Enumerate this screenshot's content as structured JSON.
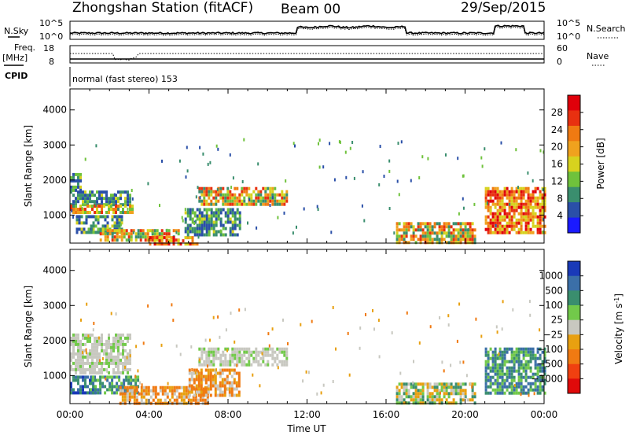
{
  "header": {
    "station": "Zhongshan Station (fitACF)",
    "beam": "Beam 00",
    "date": "29/Sep/2015"
  },
  "top_panels": {
    "nsky_label": "N.Sky",
    "nsky_ticks": [
      "10^5",
      "10^0"
    ],
    "nsearch_label": "N.Search",
    "nsearch_ticks": [
      "10^5",
      "10^0"
    ],
    "freq_label": "Freq.",
    "freq_unit": "[MHz]",
    "freq_ticks": [
      "18",
      "8"
    ],
    "nave_label": "Nave",
    "nave_ticks": [
      "60",
      "0"
    ],
    "cpid_label": "CPID",
    "cpid_value": "normal (fast stereo) 153"
  },
  "colors": {
    "power_scale": [
      "#1a1aff",
      "#2a4fa8",
      "#3a8e6e",
      "#6fc23c",
      "#d7d21e",
      "#f0a21e",
      "#f07a12",
      "#e83010",
      "#e0000a"
    ],
    "velocity_scale": [
      "#1a3ab8",
      "#3b6fa8",
      "#3a8e6e",
      "#72c94a",
      "#c8c8c0",
      "#e8a010",
      "#f07a12",
      "#f04010",
      "#e00a0a"
    ]
  },
  "chart_data": [
    {
      "type": "heatmap",
      "name": "power",
      "ylabel": "Slant Range [km]",
      "yticks": [
        "1000",
        "2000",
        "3000",
        "4000"
      ],
      "xticks": [
        "00:00",
        "04:00",
        "08:00",
        "12:00",
        "16:00",
        "20:00",
        "00:00"
      ],
      "xlim": [
        "00:00",
        "24:00"
      ],
      "ylim": [
        200,
        4600
      ],
      "colorbar": {
        "label": "Power [dB]",
        "ticks": [
          "4",
          "8",
          "12",
          "16",
          "20",
          "24",
          "28"
        ],
        "range": [
          0,
          30
        ]
      },
      "regions": [
        {
          "t": [
            0.0,
            0.5
          ],
          "r": [
            1700,
            2200
          ],
          "level": "mid"
        },
        {
          "t": [
            0.0,
            3.0
          ],
          "r": [
            1300,
            1700
          ],
          "level": "mid"
        },
        {
          "t": [
            0.0,
            3.2
          ],
          "r": [
            1100,
            1300
          ],
          "level": "high"
        },
        {
          "t": [
            0.3,
            2.6
          ],
          "r": [
            500,
            1000
          ],
          "level": "mid"
        },
        {
          "t": [
            1.5,
            5.5
          ],
          "r": [
            300,
            600
          ],
          "level": "high"
        },
        {
          "t": [
            4.0,
            6.5
          ],
          "r": [
            200,
            400
          ],
          "level": "very-high"
        },
        {
          "t": [
            5.8,
            8.6
          ],
          "r": [
            450,
            1200
          ],
          "level": "mid"
        },
        {
          "t": [
            6.5,
            11.0
          ],
          "r": [
            1300,
            1800
          ],
          "level": "high"
        },
        {
          "t": [
            16.5,
            20.5
          ],
          "r": [
            200,
            800
          ],
          "level": "high"
        },
        {
          "t": [
            21.0,
            24.0
          ],
          "r": [
            500,
            1800
          ],
          "level": "very-high"
        }
      ]
    },
    {
      "type": "heatmap",
      "name": "velocity",
      "ylabel": "Slant Range [km]",
      "xlabel": "Time UT",
      "yticks": [
        "1000",
        "2000",
        "3000",
        "4000"
      ],
      "xticks": [
        "00:00",
        "04:00",
        "08:00",
        "12:00",
        "16:00",
        "20:00",
        "00:00"
      ],
      "xlim": [
        "00:00",
        "24:00"
      ],
      "ylim": [
        200,
        4600
      ],
      "colorbar": {
        "label": "Velocity [m s",
        "label_sup": "-1",
        "label_end": "]",
        "ticks": [
          "1000",
          "500",
          "100",
          "25",
          "−25",
          "−100",
          "−500",
          "−1000"
        ]
      },
      "regions": [
        {
          "t": [
            0.0,
            3.0
          ],
          "r": [
            1100,
            2200
          ],
          "level": "gray"
        },
        {
          "t": [
            0.0,
            1.2
          ],
          "r": [
            500,
            1000
          ],
          "level": "blue"
        },
        {
          "t": [
            1.0,
            3.5
          ],
          "r": [
            500,
            1000
          ],
          "level": "teal"
        },
        {
          "t": [
            2.5,
            7.0
          ],
          "r": [
            200,
            700
          ],
          "level": "orange"
        },
        {
          "t": [
            6.0,
            8.6
          ],
          "r": [
            450,
            1200
          ],
          "level": "orange"
        },
        {
          "t": [
            6.5,
            11.0
          ],
          "r": [
            1300,
            1800
          ],
          "level": "gray"
        },
        {
          "t": [
            16.5,
            20.5
          ],
          "r": [
            200,
            800
          ],
          "level": "green"
        },
        {
          "t": [
            21.0,
            24.0
          ],
          "r": [
            500,
            1800
          ],
          "level": "teal"
        }
      ]
    }
  ]
}
